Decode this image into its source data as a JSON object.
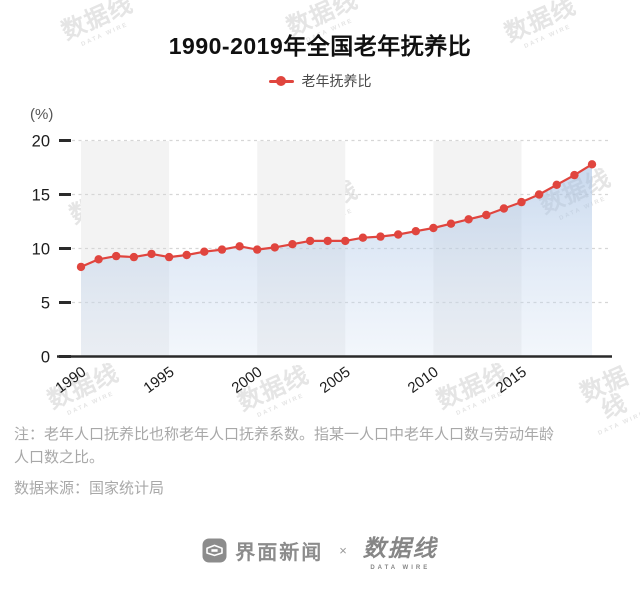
{
  "title": "1990-2019年全国老年抚养比",
  "legend": {
    "label": "老年抚养比",
    "color": "#e0453e"
  },
  "chart_data": {
    "type": "line",
    "title": "1990-2019年全国老年抚养比",
    "series_name": "老年抚养比",
    "unit": "(%)",
    "x": [
      1990,
      1991,
      1992,
      1993,
      1994,
      1995,
      1996,
      1997,
      1998,
      1999,
      2000,
      2001,
      2002,
      2003,
      2004,
      2005,
      2006,
      2007,
      2008,
      2009,
      2010,
      2011,
      2012,
      2013,
      2014,
      2015,
      2016,
      2017,
      2018,
      2019
    ],
    "values": [
      8.3,
      9.0,
      9.3,
      9.2,
      9.5,
      9.2,
      9.4,
      9.7,
      9.9,
      10.2,
      9.9,
      10.1,
      10.4,
      10.7,
      10.7,
      10.7,
      11.0,
      11.1,
      11.3,
      11.6,
      11.9,
      12.3,
      12.7,
      13.1,
      13.7,
      14.3,
      15.0,
      15.9,
      16.8,
      17.8
    ],
    "xtick_labels": [
      "1990",
      "1995",
      "2000",
      "2005",
      "2010",
      "2015"
    ],
    "yticks": [
      0,
      5,
      10,
      15,
      20
    ],
    "ylim": [
      0,
      20
    ],
    "grid": "dashed",
    "legend_position": "top-center",
    "area_fill": true,
    "band_year_ranges": [
      [
        1990,
        1995
      ],
      [
        2000,
        2005
      ],
      [
        2010,
        2015
      ]
    ]
  },
  "colors": {
    "line": "#e0453e",
    "point": "#e0453e",
    "area_top": "rgba(156,186,224,0.55)",
    "area_bottom": "rgba(210,224,243,0.28)",
    "band": "#f3f3f3",
    "grid": "#d6d6d6",
    "axis": "#2a2a2a",
    "axis_label": "#1c1c1c",
    "unit_label": "#555555",
    "note_text": "#a8a8a8",
    "footer_gray": "#8c8c8c",
    "watermark": "#e5e5e5"
  },
  "notes": {
    "definition": "注：老年人口抚养比也称老年人口抚养系数。指某一人口中老年人口数与劳动年龄\n人口数之比。",
    "source": "数据来源：国家统计局"
  },
  "footer": {
    "jiemian": "界面新闻",
    "separator": "×",
    "datawire": "数据线",
    "datawire_sub": "DATA WIRE"
  },
  "watermark": {
    "text": "数据线",
    "sub": "DATA WIRE"
  }
}
